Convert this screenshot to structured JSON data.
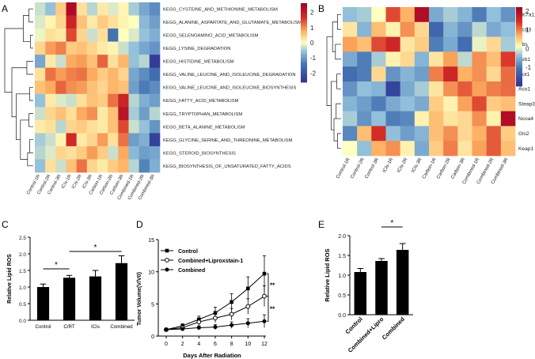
{
  "figure": {
    "panel_labels": [
      "A",
      "B",
      "C",
      "D",
      "E"
    ]
  },
  "chart_data": [
    {
      "panel": "A",
      "type": "heatmap",
      "columns": [
        "Control-1R",
        "Control-2R",
        "Control-3R",
        "ICIs-1R",
        "ICIs-2R",
        "ICIs-3R",
        "Carbon-1R",
        "Carbon-2R",
        "Carbon-3R",
        "Combined-1R",
        "Combined-2R",
        "Combined-3R"
      ],
      "rows": [
        "KEGG_CYSTEINE_AND_METHIONINE_METABOLISM",
        "KEGG_ALANINE_ASPARTATE_AND_GLUTAMATE_METABOLISM",
        "KEGG_SELENOAMINO_ACID_METABOLISM",
        "KEGG_LYSINE_DEGRADATION",
        "KEGG_HISTIDINE_METABOLISM",
        "KEGG_VALINE_LEUCINE_AND_ISOLEUCINE_DEGRADATION",
        "KEGG_VALINE_LEUCINE_AND_ISOLEUCINE_BIOSYNTHESIS",
        "KEGG_FATTY_ACID_METABOLISM",
        "KEGG_TRYPTOPHAN_METABOLISM",
        "KEGG_BETA_ALANINE_METABOLISM",
        "KEGG_GLYCINE_SERINE_AND_THREONINE_METABOLISM",
        "KEGG_STEROID_BIOSYNTHESIS",
        "KEGG_BIOSYNTHESIS_OF_UNSATURATED_FATTY_ACIDS"
      ],
      "values": [
        [
          -0.3,
          -0.6,
          0.5,
          2.4,
          0.3,
          -0.4,
          0.2,
          -0.2,
          0.1,
          -0.5,
          -0.9,
          -1.2
        ],
        [
          -0.2,
          0.1,
          0.4,
          1.9,
          0.6,
          0.2,
          0.5,
          0.3,
          0.1,
          0.0,
          -0.7,
          -1.0
        ],
        [
          -0.1,
          0.3,
          0.2,
          1.5,
          0.4,
          -0.3,
          0.3,
          -1.5,
          0.0,
          -0.2,
          -0.6,
          -0.8
        ],
        [
          0.4,
          0.9,
          1.1,
          0.5,
          0.6,
          0.4,
          0.2,
          0.1,
          -0.3,
          -0.6,
          -0.9,
          -1.1
        ],
        [
          -0.9,
          0.2,
          -0.3,
          0.8,
          0.9,
          0.6,
          1.3,
          0.3,
          0.7,
          -0.6,
          -0.4,
          -2.5
        ],
        [
          0.3,
          1.2,
          0.9,
          1.1,
          1.2,
          0.8,
          0.5,
          0.7,
          0.4,
          -0.9,
          -1.2,
          -1.6
        ],
        [
          0.6,
          0.8,
          1.3,
          1.0,
          0.9,
          0.6,
          0.4,
          0.7,
          0.6,
          -1.0,
          -1.4,
          -1.2
        ],
        [
          -0.6,
          0.2,
          -0.2,
          -0.3,
          0.3,
          0.6,
          0.5,
          1.2,
          1.9,
          -0.4,
          -0.8,
          -1.0
        ],
        [
          -0.3,
          0.4,
          0.6,
          0.3,
          0.8,
          1.0,
          0.2,
          0.6,
          2.2,
          -0.5,
          -1.0,
          -0.4
        ],
        [
          0.2,
          0.3,
          -0.4,
          0.4,
          0.5,
          0.3,
          0.2,
          0.6,
          1.5,
          -0.3,
          -0.6,
          -1.1
        ],
        [
          -0.5,
          -0.3,
          0.1,
          1.8,
          0.2,
          0.4,
          0.9,
          0.3,
          1.2,
          -1.0,
          -0.8,
          -2.4
        ],
        [
          -0.4,
          -0.2,
          0.4,
          0.3,
          0.5,
          0.9,
          0.5,
          -0.3,
          0.8,
          -0.7,
          -1.0,
          -0.9
        ],
        [
          -0.6,
          0.3,
          -0.3,
          0.6,
          1.2,
          0.4,
          0.2,
          0.5,
          0.7,
          -0.4,
          -1.3,
          -0.8
        ]
      ],
      "scale_ticks": [
        2,
        1,
        0,
        -1,
        -2
      ],
      "range": [
        -2.6,
        2.6
      ]
    },
    {
      "panel": "B",
      "type": "heatmap",
      "columns": [
        "Control-1R",
        "Control-2R",
        "Control-3R",
        "ICIs-1R",
        "ICIs-2R",
        "ICIs-3R",
        "Carbon-1R",
        "Carbon-2R",
        "Carbon-3R",
        "Combined-1R",
        "Combined-2R",
        "Combined-3R"
      ],
      "rows": [
        "Slc7a11",
        "Acsl3",
        "Cbs",
        "Zeb1",
        "Got1",
        "Aco1",
        "Steap3",
        "Ncoa4",
        "Gls2",
        "Keap1"
      ],
      "values": [
        [
          -0.4,
          -0.3,
          0.1,
          1.3,
          0.7,
          2.0,
          -0.6,
          -0.3,
          -0.5,
          -1.0,
          -0.4,
          -0.8
        ],
        [
          0.3,
          -0.5,
          0.6,
          0.2,
          0.9,
          0.4,
          -1.3,
          -0.5,
          -0.8,
          -0.2,
          -0.6,
          -0.4
        ],
        [
          0.8,
          0.6,
          1.3,
          1.6,
          0.3,
          0.5,
          -1.0,
          -0.6,
          -1.2,
          0.0,
          0.4,
          -0.3
        ],
        [
          -0.6,
          -1.0,
          -0.3,
          0.2,
          0.4,
          -0.5,
          0.3,
          0.8,
          -0.2,
          0.9,
          0.6,
          1.4
        ],
        [
          -1.2,
          -1.0,
          0.4,
          -0.8,
          -0.5,
          -0.7,
          1.0,
          1.6,
          0.7,
          0.9,
          0.4,
          1.1
        ],
        [
          -0.8,
          -0.4,
          -0.5,
          -1.8,
          -0.6,
          -0.3,
          0.3,
          0.9,
          1.2,
          0.8,
          1.0,
          1.1
        ],
        [
          -0.5,
          -0.7,
          -1.0,
          -0.6,
          -0.4,
          -0.6,
          0.5,
          0.2,
          0.8,
          1.3,
          0.5,
          0.6
        ],
        [
          -0.3,
          -0.8,
          -0.4,
          -1.0,
          -0.9,
          0.2,
          0.6,
          0.3,
          0.4,
          0.9,
          0.2,
          2.0
        ],
        [
          -0.9,
          0.6,
          1.5,
          -0.4,
          -0.7,
          -0.5,
          0.6,
          0.9,
          0.4,
          0.7,
          1.2,
          0.5
        ],
        [
          0.1,
          -0.4,
          0.7,
          0.9,
          0.2,
          -0.6,
          0.5,
          1.0,
          0.3,
          0.8,
          1.2,
          0.6
        ]
      ],
      "scale_ticks": [
        2,
        1,
        0,
        -1
      ],
      "range": [
        -2,
        2.2
      ]
    },
    {
      "panel": "C",
      "type": "bar",
      "categories": [
        "Control",
        "C/RT",
        "ICIs",
        "Combined"
      ],
      "values": [
        1.0,
        1.28,
        1.32,
        1.72
      ],
      "errors": [
        0.09,
        0.07,
        0.18,
        0.22
      ],
      "ylabel": "Relative Lipid ROS",
      "ylim": [
        0,
        2.5
      ],
      "yticks": [
        "0.0",
        "0.5",
        "1.0",
        "1.5",
        "2.0",
        "2.5"
      ],
      "significance": [
        {
          "pair": [
            "Control",
            "C/RT"
          ],
          "label": "*"
        },
        {
          "pair": [
            "C/RT",
            "Combined"
          ],
          "label": "*"
        }
      ]
    },
    {
      "panel": "D",
      "type": "line",
      "x": [
        0,
        2,
        4,
        6,
        8,
        10,
        12
      ],
      "xticks": [
        "0",
        "2",
        "4",
        "6",
        "8",
        "10",
        "12"
      ],
      "yticks": [
        "0",
        "5",
        "10",
        "15"
      ],
      "ylim": [
        0,
        15
      ],
      "xlabel": "Days After Radiation",
      "ylabel": "Tumor Volume(V/V0)",
      "series": [
        {
          "name": "Control",
          "marker": "filled-square",
          "values": [
            1.0,
            1.6,
            2.6,
            3.6,
            5.3,
            7.4,
            9.7
          ],
          "errors": [
            0.1,
            0.3,
            0.5,
            0.9,
            1.3,
            1.8,
            2.8
          ]
        },
        {
          "name": "Combined+Liproxstain-1",
          "marker": "open-circle",
          "values": [
            1.0,
            1.3,
            2.2,
            2.8,
            3.4,
            4.6,
            6.2
          ],
          "errors": [
            0.1,
            0.3,
            0.5,
            0.7,
            0.9,
            1.2,
            1.6
          ]
        },
        {
          "name": "Combined",
          "marker": "filled-circle",
          "values": [
            1.0,
            1.1,
            1.3,
            1.4,
            1.7,
            2.0,
            2.3
          ],
          "errors": [
            0.1,
            0.2,
            0.3,
            0.4,
            0.5,
            0.7,
            1.0
          ]
        }
      ],
      "significance": [
        {
          "pair": [
            "Control",
            "Combined+Liproxstain-1"
          ],
          "label": "**"
        },
        {
          "pair": [
            "Combined+Liproxstain-1",
            "Combined"
          ],
          "label": "**"
        }
      ]
    },
    {
      "panel": "E",
      "type": "bar",
      "categories": [
        "Control",
        "Combined+Lipro",
        "Combined"
      ],
      "values": [
        1.08,
        1.36,
        1.64
      ],
      "errors": [
        0.09,
        0.06,
        0.16
      ],
      "ylabel": "Relative Lipid ROS",
      "ylim": [
        0,
        2.0
      ],
      "yticks": [
        "0.0",
        "0.5",
        "1.0",
        "1.5",
        "2.0"
      ],
      "significance": [
        {
          "pair": [
            "Combined+Lipro",
            "Combined"
          ],
          "label": "*"
        }
      ]
    }
  ]
}
